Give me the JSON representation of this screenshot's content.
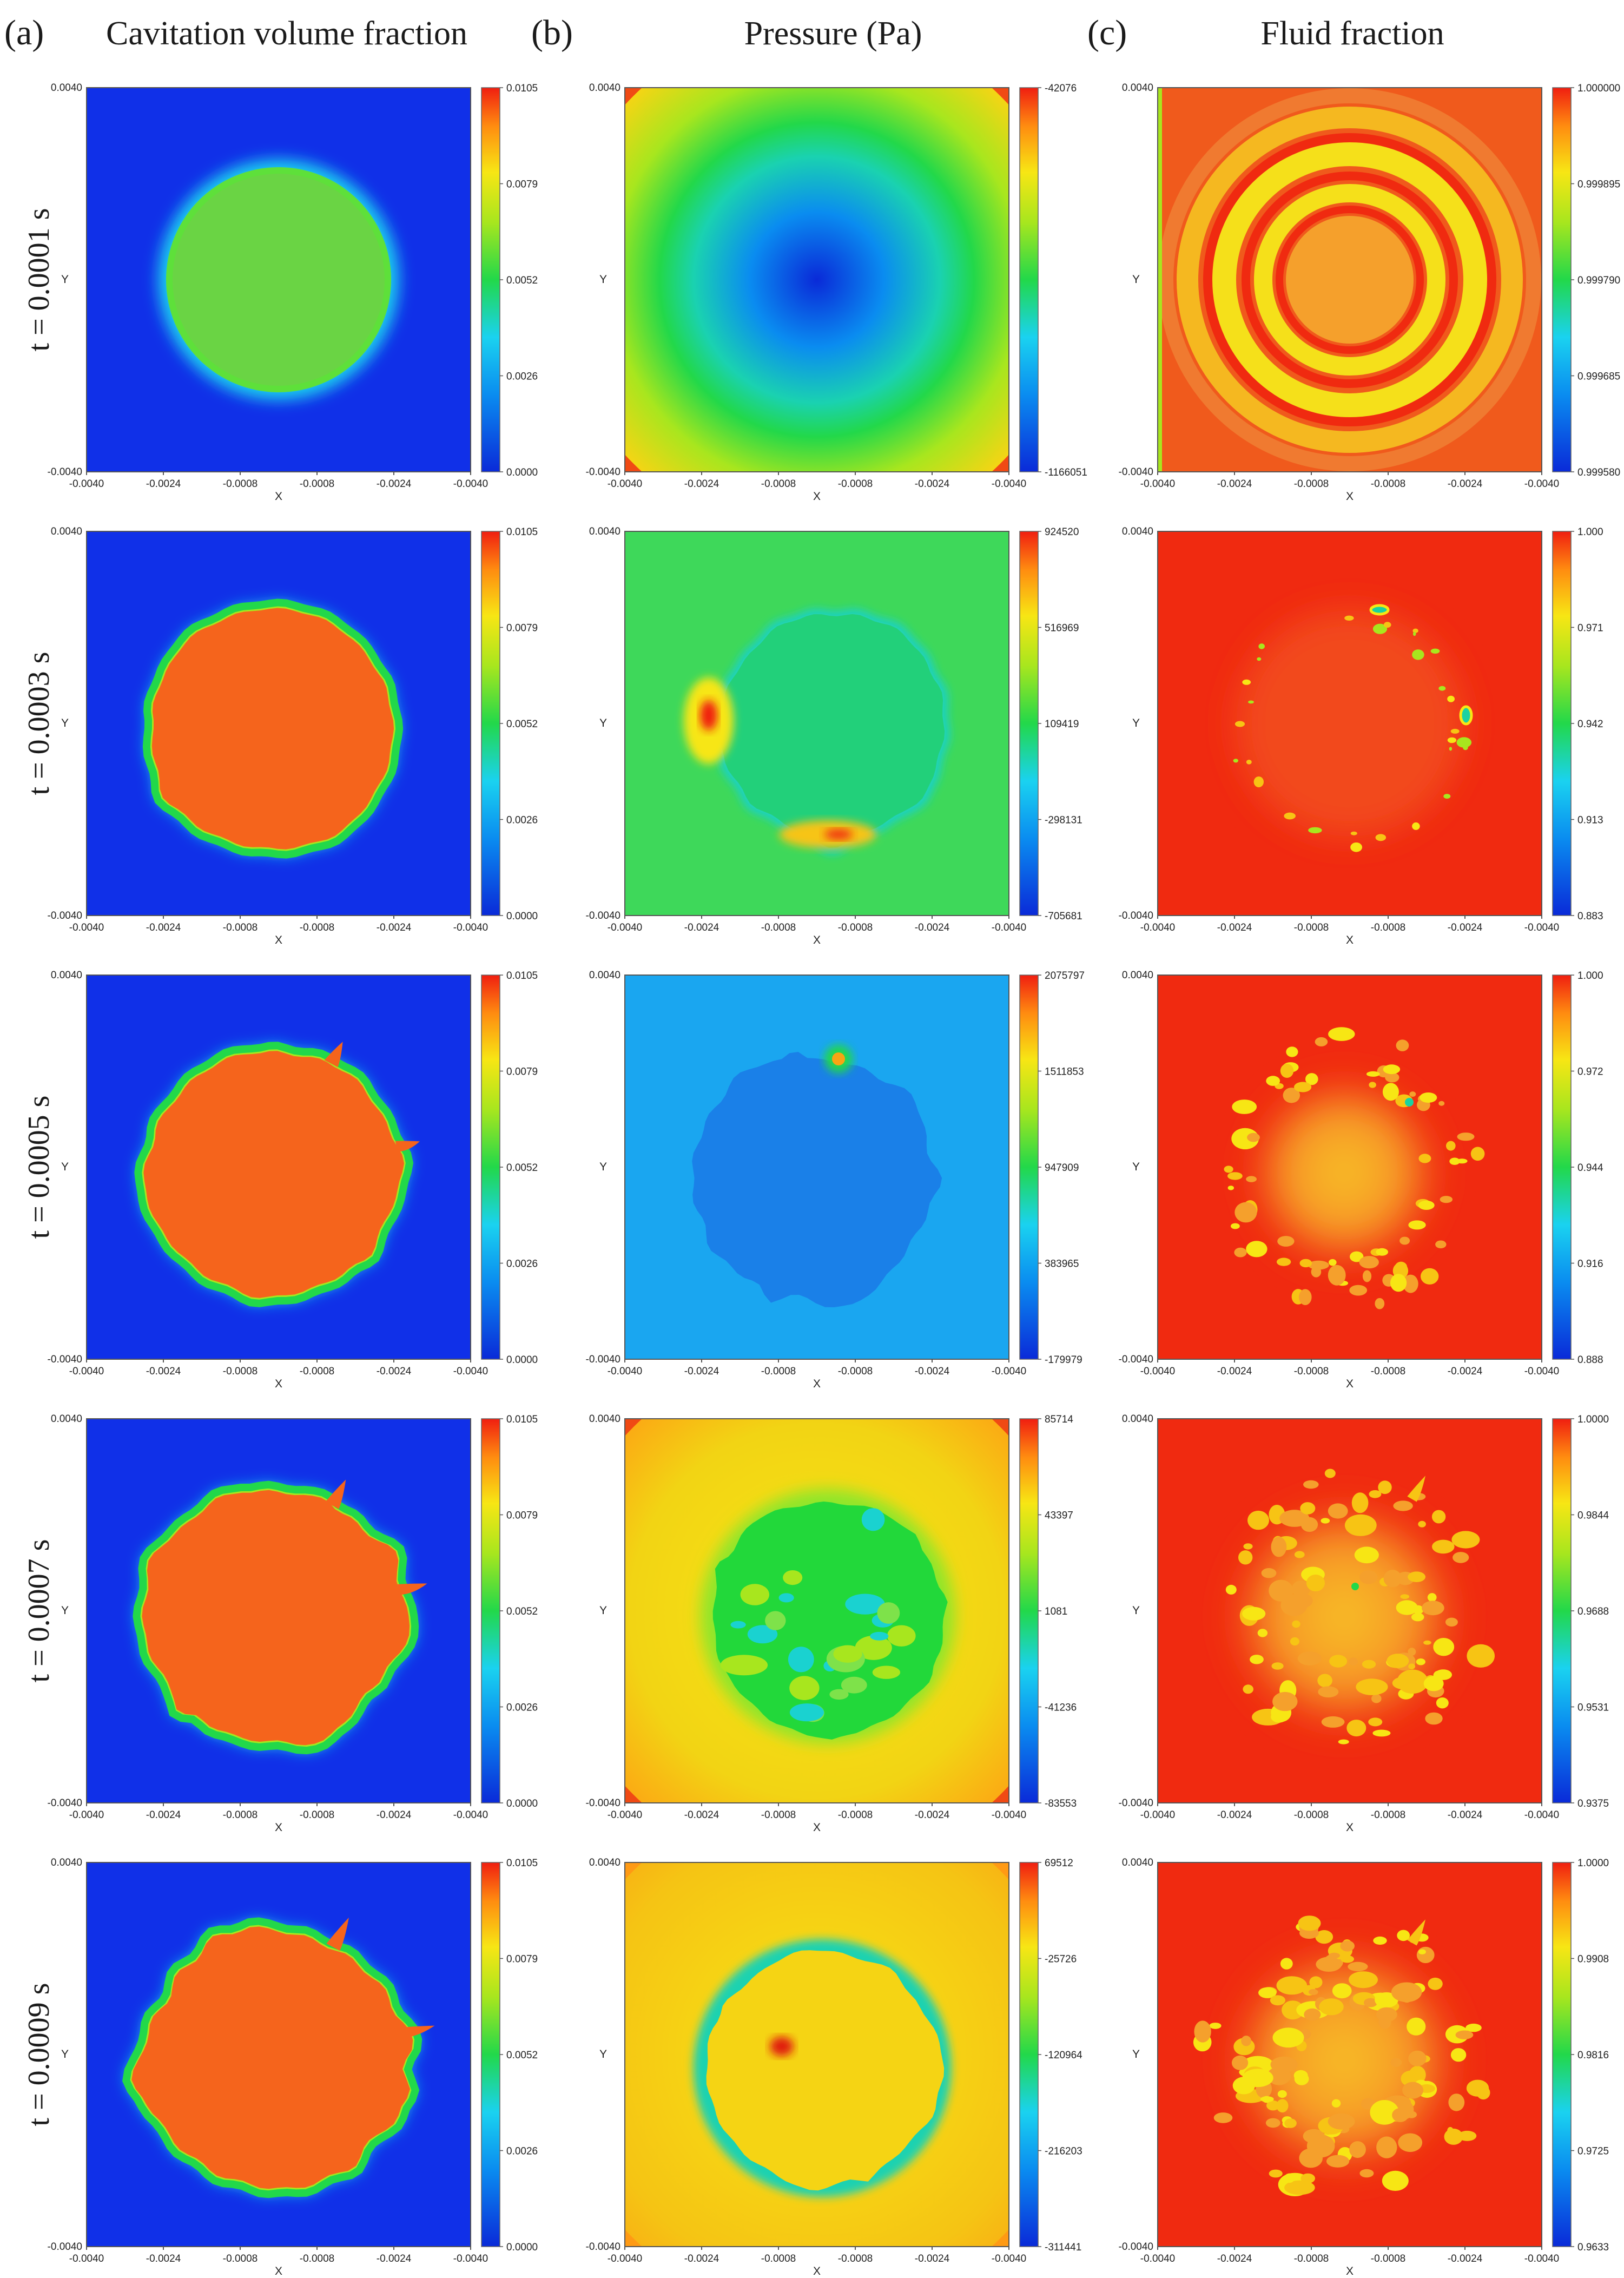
{
  "figure": {
    "columns": [
      {
        "tag": "(a)",
        "title": "Cavitation volume fraction",
        "field": "cavitation"
      },
      {
        "tag": "(b)",
        "title": "Pressure (Pa)",
        "field": "pressure"
      },
      {
        "tag": "(c)",
        "title": "",
        "field": "fluid"
      }
    ],
    "fluid_title": "Fluid fraction",
    "rows": [
      {
        "label": "t = 0.0001 s"
      },
      {
        "label": "t = 0.0003 s"
      },
      {
        "label": "t = 0.0005 s"
      },
      {
        "label": "t = 0.0007 s"
      },
      {
        "label": "t = 0.0009 s"
      }
    ],
    "axes": {
      "xlabel": "X",
      "ylabel": "Y",
      "x_ticks": [
        "-0.0040",
        "-0.0024",
        "-0.0008",
        "-0.0008",
        "-0.0024",
        "-0.0040"
      ],
      "y_top": "0.0040",
      "y_bottom": "-0.0040"
    }
  },
  "chart_data": [
    {
      "type": "heatmap",
      "column": "Cavitation volume fraction",
      "time": "t = 0.0001 s",
      "colorbar": [
        "0.0105",
        "0.0079",
        "0.0052",
        "0.0026",
        "0.0000"
      ]
    },
    {
      "type": "heatmap",
      "column": "Pressure (Pa)",
      "time": "t = 0.0001 s",
      "colorbar": [
        "-42076",
        "-1166051"
      ]
    },
    {
      "type": "heatmap",
      "column": "Fluid fraction",
      "time": "t = 0.0001 s",
      "colorbar": [
        "1.000000",
        "0.999895",
        "0.999790",
        "0.999685",
        "0.999580"
      ]
    },
    {
      "type": "heatmap",
      "column": "Cavitation volume fraction",
      "time": "t = 0.0003 s",
      "colorbar": [
        "0.0105",
        "0.0079",
        "0.0052",
        "0.0026",
        "0.0000"
      ]
    },
    {
      "type": "heatmap",
      "column": "Pressure (Pa)",
      "time": "t = 0.0003 s",
      "colorbar": [
        "924520",
        "516969",
        "109419",
        "-298131",
        "-705681"
      ]
    },
    {
      "type": "heatmap",
      "column": "Fluid fraction",
      "time": "t = 0.0003 s",
      "colorbar": [
        "1.000",
        "0.971",
        "0.942",
        "0.913",
        "0.883"
      ]
    },
    {
      "type": "heatmap",
      "column": "Cavitation volume fraction",
      "time": "t = 0.0005 s",
      "colorbar": [
        "0.0105",
        "0.0079",
        "0.0052",
        "0.0026",
        "0.0000"
      ]
    },
    {
      "type": "heatmap",
      "column": "Pressure (Pa)",
      "time": "t = 0.0005 s",
      "colorbar": [
        "2075797",
        "1511853",
        "947909",
        "383965",
        "-179979"
      ]
    },
    {
      "type": "heatmap",
      "column": "Fluid fraction",
      "time": "t = 0.0005 s",
      "colorbar": [
        "1.000",
        "0.972",
        "0.944",
        "0.916",
        "0.888"
      ]
    },
    {
      "type": "heatmap",
      "column": "Cavitation volume fraction",
      "time": "t = 0.0007 s",
      "colorbar": [
        "0.0105",
        "0.0079",
        "0.0052",
        "0.0026",
        "0.0000"
      ]
    },
    {
      "type": "heatmap",
      "column": "Pressure (Pa)",
      "time": "t = 0.0007 s",
      "colorbar": [
        "85714",
        "43397",
        "1081",
        "-41236",
        "-83553"
      ]
    },
    {
      "type": "heatmap",
      "column": "Fluid fraction",
      "time": "t = 0.0007 s",
      "colorbar": [
        "1.0000",
        "0.9844",
        "0.9688",
        "0.9531",
        "0.9375"
      ]
    },
    {
      "type": "heatmap",
      "column": "Cavitation volume fraction",
      "time": "t = 0.0009 s",
      "colorbar": [
        "0.0105",
        "0.0079",
        "0.0052",
        "0.0026",
        "0.0000"
      ]
    },
    {
      "type": "heatmap",
      "column": "Pressure (Pa)",
      "time": "t = 0.0009 s",
      "colorbar": [
        "69512",
        "-25726",
        "-120964",
        "-216203",
        "-311441"
      ]
    },
    {
      "type": "heatmap",
      "column": "Fluid fraction",
      "time": "t = 0.0009 s",
      "colorbar": [
        "1.0000",
        "0.9908",
        "0.9816",
        "0.9725",
        "0.9633"
      ]
    }
  ]
}
